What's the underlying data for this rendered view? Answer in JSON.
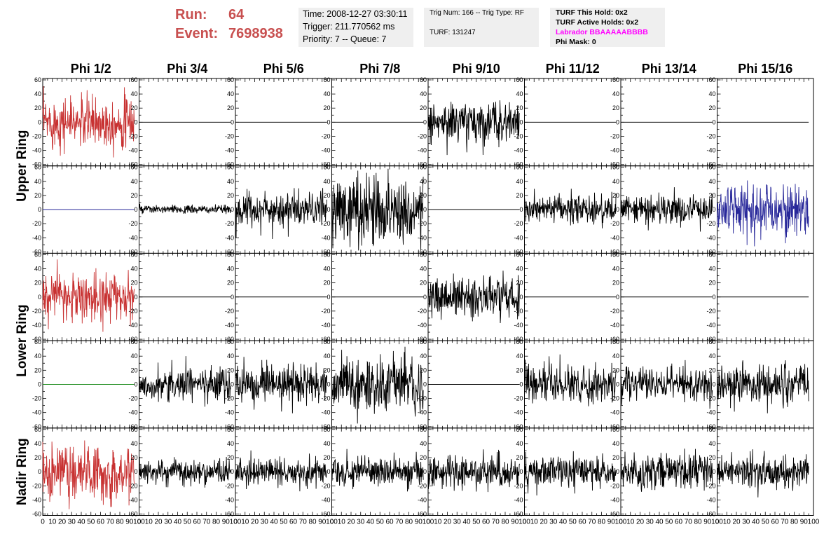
{
  "header": {
    "run_label": "Run:",
    "run_value": "64",
    "event_label": "Event:",
    "event_value": "7698938",
    "time": "Time: 2008-12-27 03:30:11",
    "trigger": "Trigger: 211.770562 ms",
    "priority": "Priority: 7 -- Queue: 7",
    "trig_num": "Trig Num: 166 -- Trig Type: RF",
    "turf": "TURF: 131247",
    "turf_this_hold": "TURF This Hold: 0x2",
    "turf_active_holds": "TURF Active Holds: 0x2",
    "labrador": "Labrador BBAAAAABBBB",
    "phi_mask": "Phi Mask: 0"
  },
  "chart_data": {
    "type": "line",
    "title": "",
    "columns": [
      "Phi 1/2",
      "Phi 3/4",
      "Phi 5/6",
      "Phi 7/8",
      "Phi 9/10",
      "Phi 11/12",
      "Phi 13/14",
      "Phi 15/16"
    ],
    "row_groups": [
      "Upper Ring",
      "Lower Ring",
      "Nadir Ring"
    ],
    "xlim": [
      0,
      100
    ],
    "ylim": [
      -60,
      60
    ],
    "x_ticks": [
      "0",
      "10",
      "20",
      "30",
      "40",
      "50",
      "60",
      "70",
      "80",
      "90",
      "100"
    ],
    "y_ticks": [
      "60",
      "40",
      "20",
      "0",
      "-20",
      "-40",
      "-60"
    ],
    "colors": {
      "red": "#c83232",
      "blue": "#28289a",
      "green": "#1a8a1a",
      "black": "#000000"
    },
    "panels": [
      [
        "red:18",
        "flat",
        "flat",
        "flat",
        "black:15",
        "flat",
        "flat",
        "flat"
      ],
      [
        "flat-blue",
        "black:3",
        "black:12",
        "black:25",
        "flat",
        "black:10",
        "black:11",
        "blue:18"
      ],
      [
        "red:17",
        "flat",
        "flat",
        "flat",
        "black:14",
        "flat",
        "flat",
        "flat"
      ],
      [
        "flat-green",
        "black:12",
        "black:13",
        "black:20",
        "flat",
        "black:12",
        "black:12",
        "black:14"
      ],
      [
        "red:20",
        "black:9",
        "black:10",
        "black:10",
        "black:12",
        "black:11",
        "black:12",
        "black:11"
      ]
    ]
  }
}
